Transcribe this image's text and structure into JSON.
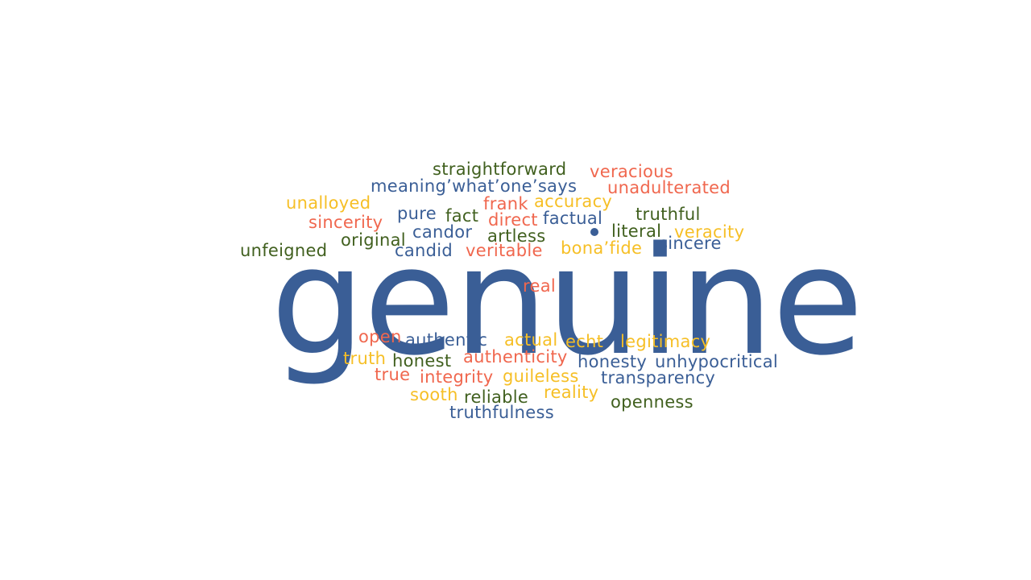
{
  "colors": {
    "blue": "#3a5e96",
    "red": "#f0674e",
    "yellow": "#f6bf26",
    "green": "#41601f"
  },
  "main_word": "genuine",
  "words": [
    "straightforward",
    "veracious",
    "meaning’what’one’says",
    "unadulterated",
    "unalloyed",
    "frank",
    "accuracy",
    "pure",
    "fact",
    "direct",
    "factual",
    "truthful",
    "sincerity",
    "candor",
    "literal",
    "veracity",
    "original",
    "artless",
    "unfeigned",
    "candid",
    "veritable",
    "bona’fide",
    "sincere",
    "real",
    "open",
    "authentic",
    "actual",
    "echt",
    "legitimacy",
    "truth",
    "honest",
    "authenticity",
    "honesty",
    "unhypocritical",
    "true",
    "integrity",
    "guileless",
    "transparency",
    "sooth",
    "reliable",
    "reality",
    "openness",
    "truthfulness"
  ]
}
